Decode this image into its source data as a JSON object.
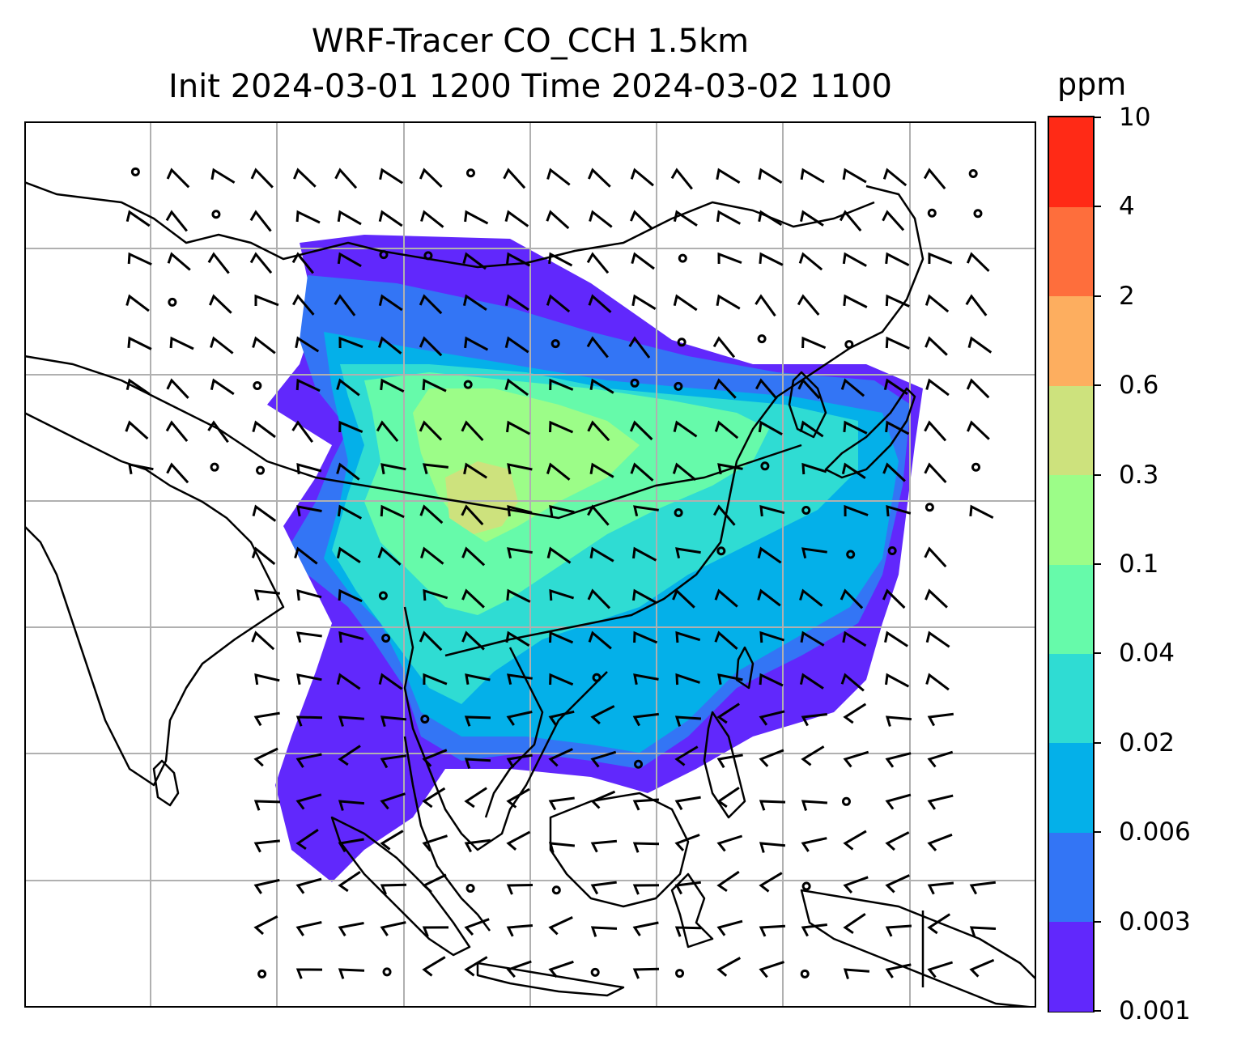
{
  "title": {
    "line1": "WRF-Tracer CO_CCH 1.5km",
    "line2": "Init 2024-03-01 1200 Time 2024-03-02 1100"
  },
  "colorbar": {
    "unit": "ppm",
    "levels": [
      "0.001",
      "0.003",
      "0.006",
      "0.02",
      "0.04",
      "0.1",
      "0.3",
      "0.6",
      "2",
      "4",
      "10"
    ],
    "colors": [
      "#6128fc",
      "#3375f5",
      "#04b0e9",
      "#2fdcd3",
      "#66faaa",
      "#9cfd88",
      "#cde27d",
      "#fdae5f",
      "#fe6e3c",
      "#ff2a16"
    ]
  },
  "map": {
    "gridlines": true,
    "gridline_color": "#b0b0b0",
    "coastline_color": "#000000",
    "wind_barbs": true
  }
}
